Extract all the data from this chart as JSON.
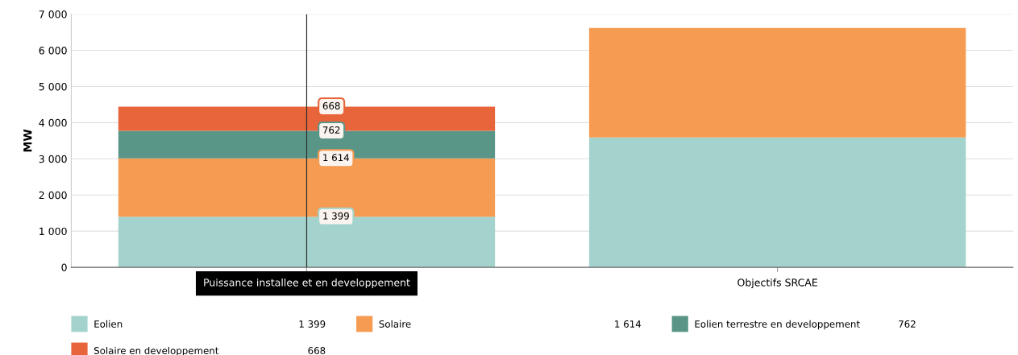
{
  "chart_data": {
    "type": "bar",
    "stacked": true,
    "ylabel": "MW",
    "categories": [
      "Puissance installee et en developpement",
      "Objectifs SRCAE"
    ],
    "series": [
      {
        "name": "Eolien",
        "color": "#a3d3cc",
        "values": [
          1399,
          3590
        ],
        "value_labels": [
          "1 399",
          null
        ]
      },
      {
        "name": "Solaire",
        "color": "#f59b52",
        "values": [
          1614,
          3030
        ],
        "value_labels": [
          "1 614",
          null
        ]
      },
      {
        "name": "Eolien terrestre en developpement",
        "color": "#5a9688",
        "values": [
          762,
          0
        ],
        "value_labels": [
          "762",
          null
        ]
      },
      {
        "name": "Solaire en developpement",
        "color": "#e8643a",
        "values": [
          668,
          0
        ],
        "value_labels": [
          "668",
          null
        ]
      }
    ],
    "ylim": [
      0,
      7000
    ],
    "yticks": [
      {
        "value": 0,
        "label": "0"
      },
      {
        "value": 1000,
        "label": "1 000"
      },
      {
        "value": 2000,
        "label": "2 000"
      },
      {
        "value": 3000,
        "label": "3 000"
      },
      {
        "value": 4000,
        "label": "4 000"
      },
      {
        "value": 5000,
        "label": "5 000"
      },
      {
        "value": 6000,
        "label": "6 000"
      },
      {
        "value": 7000,
        "label": "7 000"
      }
    ],
    "ref_lines": [
      {
        "axis": "x",
        "value": "Puissance installee et en developpement",
        "color": "#333333"
      }
    ],
    "grid": "y",
    "legend": "bottom"
  }
}
